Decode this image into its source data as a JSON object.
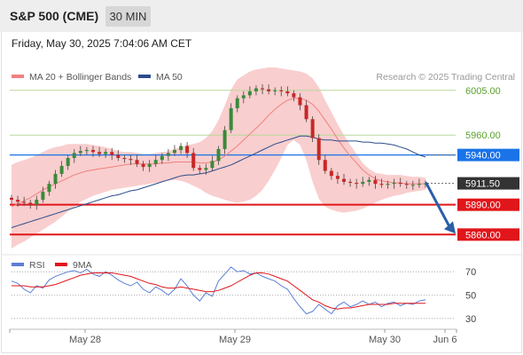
{
  "header": {
    "title": "S&P 500 (CME)",
    "timeframe": "30 MIN",
    "datetime": "Friday, May 30, 2025 7:04:06 AM CET"
  },
  "legend": {
    "items": [
      {
        "label": "MA 20 + Bollinger Bands",
        "color": "#f08080"
      },
      {
        "label": "MA 50",
        "color": "#2b4c8c"
      }
    ],
    "credit": "Research © 2025 Trading Central"
  },
  "colors": {
    "bullish": "#3a8a3a",
    "bearish": "#c62828",
    "resistance_line": "#b9d89a",
    "resistance_text": "#5aa02c",
    "pivot": "#1a73e8",
    "support": "#e0161b",
    "current": "#333333",
    "bollinger_fill": "#f8c6c6",
    "ma20": "#f08080",
    "ma50": "#2b4c8c",
    "arrow": "#2b5fa6",
    "rsi_line": "#5b7fd6",
    "rsi_ma": "#e0161b"
  },
  "chart_data": [
    {
      "type": "candlestick",
      "title": "",
      "ylim": [
        5846,
        6028
      ],
      "x_ticks": [
        "May 28",
        "May 29",
        "May 30",
        "Jun 6"
      ],
      "close": [
        5895,
        5893,
        5892,
        5890,
        5895,
        5903,
        5911,
        5921,
        5929,
        5937,
        5942,
        5944,
        5945,
        5943,
        5941,
        5943,
        5940,
        5937,
        5936,
        5935,
        5931,
        5928,
        5931,
        5935,
        5939,
        5942,
        5945,
        5949,
        5942,
        5927,
        5925,
        5927,
        5934,
        5946,
        5965,
        5987,
        5997,
        6000,
        6004,
        6007,
        6006,
        6004,
        6005,
        6004,
        6002,
        5998,
        5990,
        5976,
        5957,
        5935,
        5924,
        5919,
        5916,
        5913,
        5912,
        5911,
        5913,
        5915,
        5911,
        5910,
        5911,
        5912,
        5911,
        5910,
        5910,
        5911,
        5911.5
      ],
      "bollinger": {
        "upper": [
          5930,
          5933,
          5935,
          5937,
          5940,
          5943,
          5946,
          5948,
          5949,
          5951,
          5951,
          5951,
          5951,
          5950,
          5949,
          5948,
          5946,
          5944,
          5943,
          5943,
          5942,
          5941,
          5941,
          5942,
          5943,
          5944,
          5946,
          5948,
          5950,
          5951,
          5953,
          5957,
          5964,
          5975,
          5990,
          6006,
          6016,
          6020,
          6024,
          6026,
          6027,
          6028,
          6028,
          6027,
          6026,
          6025,
          6024,
          6022,
          6017,
          6008,
          5995,
          5983,
          5971,
          5960,
          5950,
          5941,
          5932,
          5926,
          5922,
          5921,
          5920,
          5920,
          5920,
          5919,
          5918,
          5918,
          5917
        ],
        "lower": [
          5846,
          5850,
          5853,
          5857,
          5861,
          5865,
          5869,
          5873,
          5878,
          5883,
          5888,
          5893,
          5896,
          5899,
          5901,
          5903,
          5905,
          5906,
          5907,
          5908,
          5909,
          5910,
          5911,
          5912,
          5913,
          5914,
          5915,
          5914,
          5912,
          5909,
          5906,
          5902,
          5899,
          5897,
          5895,
          5893,
          5892,
          5893,
          5895,
          5899,
          5905,
          5914,
          5925,
          5937,
          5950,
          5955,
          5950,
          5935,
          5913,
          5896,
          5888,
          5885,
          5883,
          5882,
          5883,
          5884,
          5886,
          5889,
          5892,
          5895,
          5897,
          5899,
          5900,
          5902,
          5903,
          5904,
          5905
        ],
        "ma20": [
          5888,
          5891,
          5894,
          5897,
          5901,
          5905,
          5908,
          5911,
          5914,
          5917,
          5920,
          5922,
          5924,
          5925,
          5926,
          5927,
          5928,
          5929,
          5930,
          5931,
          5931,
          5931,
          5931,
          5931,
          5932,
          5932,
          5933,
          5933,
          5933,
          5933,
          5932,
          5932,
          5933,
          5935,
          5939,
          5944,
          5949,
          5955,
          5961,
          5967,
          5973,
          5980,
          5986,
          5991,
          5995,
          5997,
          5997,
          5995,
          5991,
          5984,
          5975,
          5966,
          5956,
          5947,
          5939,
          5932,
          5925,
          5920,
          5916,
          5914,
          5913,
          5912,
          5912,
          5911,
          5911,
          5911,
          5911
        ]
      },
      "ma50": [
        5867,
        5869,
        5871,
        5873,
        5875,
        5877,
        5879,
        5881,
        5883,
        5885,
        5887,
        5889,
        5891,
        5893,
        5895,
        5897,
        5899,
        5900,
        5902,
        5904,
        5905,
        5907,
        5909,
        5911,
        5913,
        5915,
        5917,
        5919,
        5920,
        5920,
        5921,
        5922,
        5924,
        5926,
        5928,
        5930,
        5933,
        5936,
        5939,
        5942,
        5945,
        5948,
        5951,
        5953,
        5955,
        5957,
        5959,
        5959,
        5958,
        5956,
        5955,
        5955,
        5954,
        5954,
        5954,
        5954,
        5953,
        5953,
        5952,
        5952,
        5951,
        5950,
        5948,
        5946,
        5943,
        5940,
        5938
      ],
      "levels": [
        {
          "label": "6005.00",
          "value": 6005,
          "role": "resistance"
        },
        {
          "label": "5960.00",
          "value": 5960,
          "role": "resistance"
        },
        {
          "label": "5940.00",
          "value": 5940,
          "role": "pivot"
        },
        {
          "label": "5911.50",
          "value": 5911.5,
          "role": "current"
        },
        {
          "label": "5890.00",
          "value": 5890,
          "role": "support"
        },
        {
          "label": "5860.00",
          "value": 5860,
          "role": "support"
        }
      ],
      "projection": {
        "from": 5911.5,
        "to": 5860
      }
    },
    {
      "type": "line",
      "title": "",
      "ylim": [
        20,
        80
      ],
      "y_ticks": [
        "70",
        "50",
        "30"
      ],
      "legend": [
        "RSI",
        "9MA"
      ],
      "series": [
        {
          "name": "RSI",
          "values": [
            62,
            60,
            55,
            52,
            58,
            56,
            63,
            66,
            68,
            70,
            71,
            69,
            72,
            68,
            66,
            70,
            67,
            63,
            60,
            58,
            61,
            55,
            52,
            57,
            54,
            50,
            55,
            64,
            58,
            50,
            45,
            52,
            49,
            62,
            68,
            74,
            70,
            71,
            68,
            69,
            66,
            64,
            62,
            58,
            55,
            47,
            40,
            34,
            36,
            42,
            38,
            34,
            41,
            44,
            40,
            42,
            45,
            42,
            44,
            40,
            43,
            44,
            41,
            43,
            42,
            45,
            46
          ]
        },
        {
          "name": "9MA",
          "values": [
            58,
            58,
            58,
            57,
            57,
            57,
            58,
            59,
            61,
            63,
            65,
            67,
            68,
            69,
            69,
            69,
            69,
            68,
            67,
            66,
            64,
            62,
            60,
            59,
            57,
            56,
            56,
            57,
            56,
            55,
            54,
            53,
            53,
            54,
            56,
            58,
            61,
            64,
            67,
            69,
            69,
            68,
            66,
            64,
            62,
            58,
            54,
            50,
            46,
            44,
            41,
            39,
            38,
            39,
            39,
            40,
            41,
            42,
            42,
            42,
            42,
            43,
            43,
            43,
            43,
            43,
            43
          ]
        }
      ]
    }
  ]
}
